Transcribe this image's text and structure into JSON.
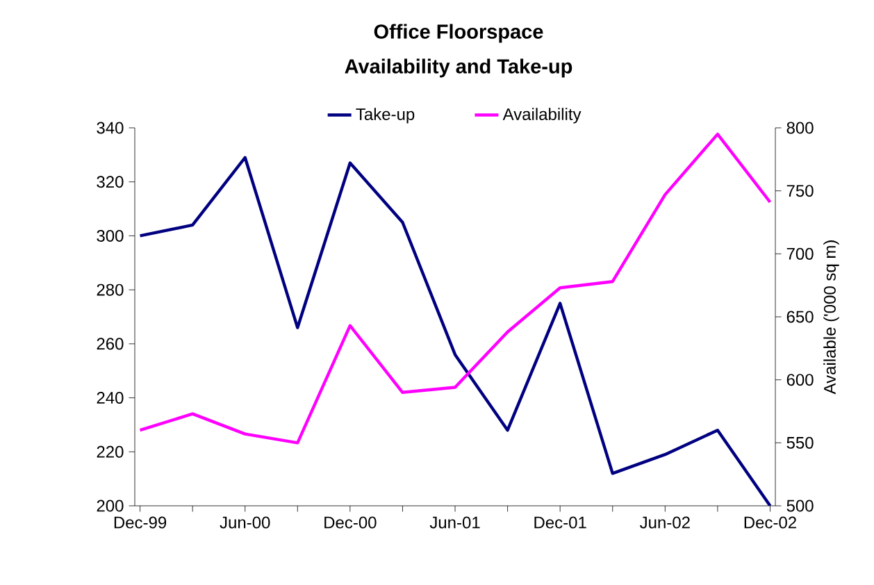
{
  "chart_data": {
    "type": "line",
    "title": "Office Floorspace",
    "subtitle": "Availability and Take-up",
    "y2label": "Available ('000 sq m)",
    "categories": [
      "Dec-99",
      null,
      "Jun-00",
      null,
      "Dec-00",
      null,
      "Jun-01",
      null,
      "Dec-01",
      null,
      "Jun-02",
      null,
      "Dec-02"
    ],
    "series": [
      {
        "name": "Take-up",
        "color": "#000080",
        "values": [
          300,
          304,
          329,
          266,
          327,
          305,
          256,
          228,
          275,
          212,
          219,
          228,
          200
        ]
      },
      {
        "name": "Availability",
        "color": "#ff00ff",
        "axis": "y2",
        "values": [
          560,
          573,
          557,
          550,
          643,
          590,
          594,
          638,
          673,
          678,
          747,
          795,
          741
        ]
      }
    ],
    "ylim": [
      200,
      340
    ],
    "yticks": [
      200,
      220,
      240,
      260,
      280,
      300,
      320,
      340
    ],
    "y2lim": [
      500,
      800
    ],
    "y2ticks": [
      500,
      550,
      600,
      650,
      700,
      750,
      800
    ],
    "legend": "top"
  }
}
